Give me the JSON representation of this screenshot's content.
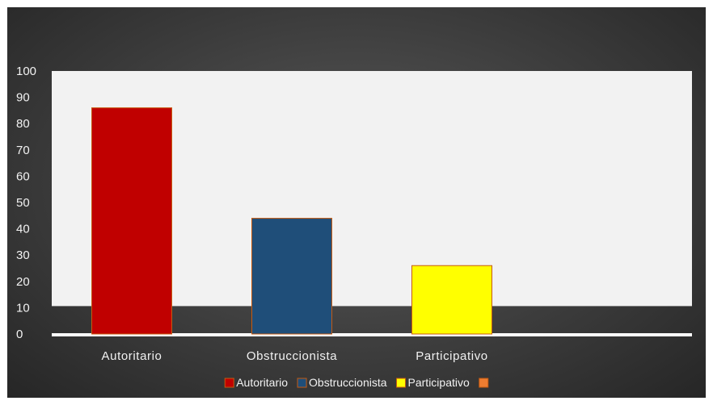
{
  "chart_data": {
    "type": "bar",
    "categories": [
      "Autoritario",
      "Obstruccionista",
      "Participativo",
      ""
    ],
    "values": [
      86,
      44,
      26,
      null
    ],
    "colors": [
      "#c00000",
      "#1f4e79",
      "#ffff00",
      "#ed7d31"
    ],
    "bar_border_color": "#c55a11",
    "ylim": [
      0,
      100
    ],
    "yticks": [
      0,
      10,
      20,
      30,
      40,
      50,
      60,
      70,
      80,
      90,
      100
    ],
    "legend": {
      "position": "bottom",
      "entries": [
        "Autoritario",
        "Obstruccionista",
        "Participativo",
        ""
      ]
    },
    "plot_background": "#f2f2f2",
    "grid": false,
    "title": "",
    "xlabel": "",
    "ylabel": ""
  }
}
